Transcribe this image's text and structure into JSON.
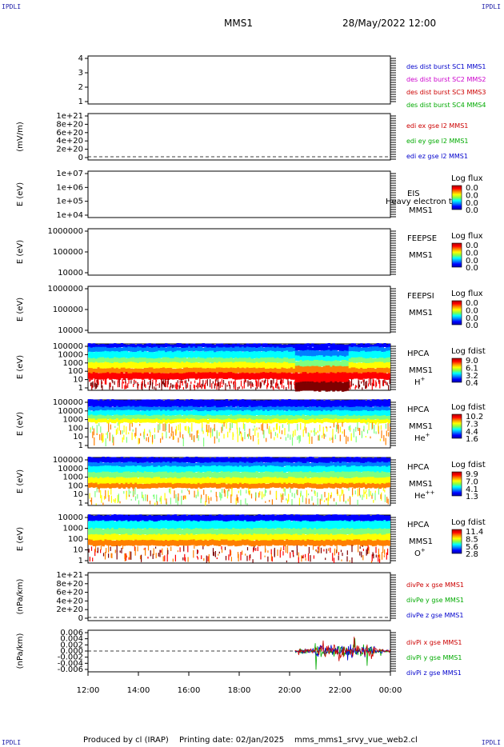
{
  "corner_tag": "IPDLI",
  "header": {
    "spacecraft": "MMS1",
    "datetime": "28/May/2022 12:00"
  },
  "footer": {
    "produced_by": "Produced by cl (IRAP)",
    "printing_date": "Printing date: 02/Jan/2025",
    "filename": "mms_mms1_srvy_vue_web2.cl"
  },
  "time_axis": {
    "labels": [
      "12:00",
      "14:00",
      "16:00",
      "18:00",
      "20:00",
      "22:00",
      "00:00"
    ]
  },
  "chart_data": [
    {
      "id": "des",
      "type": "line",
      "ytick_labels": [
        "1",
        "2",
        "3",
        "4"
      ],
      "ylim": [
        0.6,
        4.4
      ],
      "ylabel": "",
      "legend": [
        {
          "text": "des dist burst SC1 MMS1",
          "color": "#0000cc"
        },
        {
          "text": "des dist burst SC2 MMS2",
          "color": "#cc00cc"
        },
        {
          "text": "des dist burst SC3 MMS3",
          "color": "#cc0000"
        },
        {
          "text": "des dist burst SC4 MMS4",
          "color": "#00aa00"
        }
      ]
    },
    {
      "id": "edi",
      "type": "line",
      "ylabel": "(mV/m)",
      "ytick_labels": [
        "0",
        "2e+20",
        "4e+20",
        "6e+20",
        "8e+20",
        "1e+21"
      ],
      "dashed_zero": true,
      "legend": [
        {
          "text": "edi ex gse l2 MMS1",
          "color": "#cc0000"
        },
        {
          "text": "edi ey gse l2 MMS1",
          "color": "#00aa00"
        },
        {
          "text": "edi ez gse l2 MMS1",
          "color": "#0000cc"
        }
      ]
    },
    {
      "id": "eis",
      "type": "heatmap",
      "ylabel": "E (eV)",
      "ytick_labels": [
        "1e+04",
        "1e+05",
        "1e+06",
        "1e+07"
      ],
      "scale": "log",
      "ylim": [
        10000,
        10000000
      ],
      "labels": [
        "EIS",
        "MMS1"
      ],
      "extra_label": "Heavy electron to",
      "cbar_title": "Log flux",
      "cbar_values": [
        "0.0",
        "0.0",
        "0.0",
        "0.0"
      ],
      "data_visible": false
    },
    {
      "id": "feepse",
      "type": "heatmap",
      "ylabel": "E (eV)",
      "ytick_labels": [
        "10000",
        "100000",
        "1000000"
      ],
      "scale": "log",
      "ylim": [
        10000,
        1000000
      ],
      "labels": [
        "FEEPSE",
        "MMS1"
      ],
      "cbar_title": "Log flux",
      "cbar_values": [
        "0.0",
        "0.0",
        "0.0",
        "0.0"
      ],
      "data_visible": false
    },
    {
      "id": "feepsi",
      "type": "heatmap",
      "ylabel": "E (eV)",
      "ytick_labels": [
        "10000",
        "100000",
        "1000000"
      ],
      "scale": "log",
      "ylim": [
        10000,
        1000000
      ],
      "labels": [
        "FEEPSI",
        "MMS1"
      ],
      "cbar_title": "Log flux",
      "cbar_values": [
        "0.0",
        "0.0",
        "0.0",
        "0.0"
      ],
      "data_visible": false
    },
    {
      "id": "hpca_h",
      "type": "heatmap",
      "ylabel": "E (eV)",
      "ytick_labels": [
        "1",
        "10",
        "100",
        "1000",
        "10000",
        "100000"
      ],
      "scale": "log",
      "ylim": [
        1,
        100000
      ],
      "labels": [
        "HPCA",
        "MMS1"
      ],
      "species": "H",
      "species_sup": "+",
      "cbar_title": "Log fdist",
      "cbar_values": [
        "9.0",
        "6.1",
        "3.2",
        "0.4"
      ],
      "data_visible": true
    },
    {
      "id": "hpca_he",
      "type": "heatmap",
      "ylabel": "E (eV)",
      "ytick_labels": [
        "1",
        "10",
        "100",
        "1000",
        "10000",
        "100000"
      ],
      "scale": "log",
      "ylim": [
        1,
        100000
      ],
      "labels": [
        "HPCA",
        "MMS1"
      ],
      "species": "He",
      "species_sup": "+",
      "cbar_title": "Log fdist",
      "cbar_values": [
        "10.2",
        "7.3",
        "4.4",
        "1.6"
      ],
      "data_visible": true
    },
    {
      "id": "hpca_hepp",
      "type": "heatmap",
      "ylabel": "E (eV)",
      "ytick_labels": [
        "1",
        "10",
        "100",
        "1000",
        "10000",
        "100000"
      ],
      "scale": "log",
      "ylim": [
        1,
        100000
      ],
      "labels": [
        "HPCA",
        "MMS1"
      ],
      "species": "He",
      "species_sup": "++",
      "cbar_title": "Log fdist",
      "cbar_values": [
        "9.9",
        "7.0",
        "4.1",
        "1.3"
      ],
      "data_visible": true
    },
    {
      "id": "hpca_o",
      "type": "heatmap",
      "ylabel": "E (eV)",
      "ytick_labels": [
        "1",
        "10",
        "100",
        "1000",
        "10000"
      ],
      "scale": "log",
      "ylim": [
        1,
        30000
      ],
      "labels": [
        "HPCA",
        "MMS1"
      ],
      "species": "O",
      "species_sup": "+",
      "cbar_title": "Log fdist",
      "cbar_values": [
        "11.4",
        "8.5",
        "5.6",
        "2.8"
      ],
      "data_visible": true
    },
    {
      "id": "divpe",
      "type": "line",
      "ylabel": "(nPa/km)",
      "ytick_labels": [
        "0",
        "2e+20",
        "4e+20",
        "6e+20",
        "8e+20",
        "1e+21"
      ],
      "dashed_zero": true,
      "legend": [
        {
          "text": "divPe x gse MMS1",
          "color": "#cc0000"
        },
        {
          "text": "divPe y gse MMS1",
          "color": "#00aa00"
        },
        {
          "text": "divPe z gse MMS1",
          "color": "#0000cc"
        }
      ]
    },
    {
      "id": "divpi",
      "type": "line",
      "ylabel": "(nPa/km)",
      "ytick_labels": [
        "-0.006",
        "-0.004",
        "-0.002",
        "0.000",
        "0.002",
        "0.004",
        "0.006"
      ],
      "ylim": [
        -0.007,
        0.007
      ],
      "dashed_zero": true,
      "legend": [
        {
          "text": "divPi x gse MMS1",
          "color": "#cc0000"
        },
        {
          "text": "divPi y gse MMS1",
          "color": "#00aa00"
        },
        {
          "text": "divPi z gse MMS1",
          "color": "#0000cc"
        }
      ]
    }
  ]
}
